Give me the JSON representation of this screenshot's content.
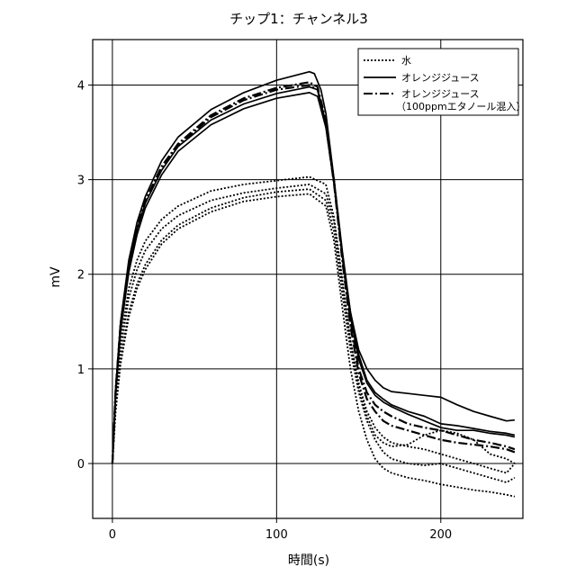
{
  "chart_data": {
    "type": "line",
    "title": "チップ1：チャンネル3",
    "xlabel": "時間(s)",
    "ylabel": "mV",
    "xlim": [
      -12,
      250
    ],
    "ylim": [
      -0.58,
      4.48
    ],
    "xticks": [
      0,
      100,
      200
    ],
    "yticks": [
      0,
      1,
      2,
      3,
      4
    ],
    "xtick_labels": [
      "0",
      "100",
      "200"
    ],
    "ytick_labels": [
      "0",
      "1",
      "2",
      "3",
      "4"
    ],
    "grid": true,
    "legend": {
      "placement": "top-right",
      "entries": [
        {
          "label": "水",
          "style": "dotted"
        },
        {
          "label": "オレンジジュース",
          "style": "solid"
        },
        {
          "label": "オレンジジュース",
          "label2": "（100ppmエタノール混入）",
          "style": "dashdot"
        }
      ]
    },
    "series": [
      {
        "style": "dotted",
        "x": [
          0,
          2,
          5,
          10,
          15,
          20,
          30,
          40,
          60,
          80,
          100,
          120,
          130,
          135,
          140,
          145,
          150,
          155,
          160,
          165,
          170,
          180,
          190,
          200,
          210,
          220,
          230,
          240,
          245
        ],
        "y": [
          0,
          0.6,
          1.1,
          1.6,
          1.9,
          2.1,
          2.36,
          2.52,
          2.7,
          2.81,
          2.87,
          2.9,
          2.78,
          2.45,
          1.8,
          1.2,
          0.75,
          0.45,
          0.25,
          0.12,
          0.05,
          0.0,
          -0.02,
          0.0,
          -0.05,
          -0.1,
          -0.15,
          -0.2,
          -0.15
        ]
      },
      {
        "style": "dotted",
        "x": [
          0,
          2,
          5,
          10,
          15,
          20,
          30,
          40,
          60,
          80,
          100,
          120,
          130,
          135,
          140,
          145,
          150,
          155,
          160,
          165,
          170,
          180,
          190,
          200,
          210,
          220,
          230,
          240,
          245
        ],
        "y": [
          0,
          0.65,
          1.2,
          1.75,
          2.05,
          2.25,
          2.48,
          2.62,
          2.78,
          2.86,
          2.91,
          2.95,
          2.85,
          2.55,
          1.9,
          1.3,
          0.85,
          0.55,
          0.38,
          0.28,
          0.22,
          0.18,
          0.15,
          0.1,
          0.05,
          0.0,
          -0.05,
          -0.1,
          0.0
        ]
      },
      {
        "style": "dotted",
        "x": [
          0,
          2,
          5,
          10,
          15,
          20,
          30,
          40,
          60,
          80,
          100,
          120,
          130,
          135,
          140,
          145,
          150,
          155,
          160,
          165,
          170,
          180,
          190,
          200,
          210,
          220,
          230,
          240,
          245
        ],
        "y": [
          0,
          0.7,
          1.3,
          1.85,
          2.15,
          2.35,
          2.58,
          2.72,
          2.88,
          2.95,
          2.99,
          3.03,
          2.95,
          2.6,
          1.95,
          1.3,
          0.8,
          0.5,
          0.3,
          0.22,
          0.18,
          0.2,
          0.3,
          0.35,
          0.32,
          0.25,
          0.1,
          0.05,
          0.0
        ]
      },
      {
        "style": "dotted",
        "x": [
          0,
          2,
          5,
          10,
          15,
          20,
          30,
          40,
          60,
          80,
          100,
          120,
          130,
          135,
          140,
          145,
          150,
          155,
          160,
          165,
          170,
          180,
          190,
          200,
          210,
          220,
          230,
          240,
          245
        ],
        "y": [
          0,
          0.55,
          1.05,
          1.55,
          1.85,
          2.05,
          2.32,
          2.48,
          2.66,
          2.77,
          2.82,
          2.85,
          2.72,
          2.35,
          1.65,
          1.0,
          0.55,
          0.25,
          0.05,
          -0.05,
          -0.1,
          -0.15,
          -0.18,
          -0.22,
          -0.25,
          -0.28,
          -0.3,
          -0.33,
          -0.35
        ]
      },
      {
        "style": "solid",
        "x": [
          0,
          2,
          5,
          10,
          15,
          20,
          30,
          40,
          60,
          80,
          100,
          120,
          123,
          127,
          130,
          135,
          140,
          145,
          150,
          155,
          160,
          165,
          170,
          180,
          190,
          200,
          210,
          220,
          230,
          240,
          245
        ],
        "y": [
          0,
          0.8,
          1.5,
          2.15,
          2.55,
          2.82,
          3.2,
          3.45,
          3.74,
          3.92,
          4.05,
          4.14,
          4.12,
          3.95,
          3.7,
          3.0,
          2.2,
          1.6,
          1.2,
          1.0,
          0.88,
          0.8,
          0.76,
          0.74,
          0.72,
          0.7,
          0.62,
          0.55,
          0.5,
          0.45,
          0.46
        ]
      },
      {
        "style": "solid",
        "x": [
          0,
          2,
          5,
          10,
          15,
          20,
          30,
          40,
          60,
          80,
          100,
          120,
          125,
          130,
          135,
          140,
          145,
          150,
          155,
          160,
          165,
          170,
          180,
          190,
          200,
          210,
          220,
          230,
          240,
          245
        ],
        "y": [
          0,
          0.75,
          1.45,
          2.08,
          2.48,
          2.75,
          3.1,
          3.35,
          3.63,
          3.8,
          3.91,
          3.98,
          3.95,
          3.6,
          3.0,
          2.25,
          1.6,
          1.15,
          0.88,
          0.75,
          0.68,
          0.62,
          0.55,
          0.5,
          0.42,
          0.4,
          0.37,
          0.34,
          0.32,
          0.3
        ]
      },
      {
        "style": "solid",
        "x": [
          0,
          2,
          5,
          10,
          15,
          20,
          30,
          40,
          60,
          80,
          100,
          120,
          125,
          130,
          135,
          140,
          145,
          150,
          155,
          160,
          165,
          170,
          180,
          190,
          200,
          210,
          220,
          230,
          240,
          245
        ],
        "y": [
          0,
          0.72,
          1.4,
          2.02,
          2.42,
          2.7,
          3.05,
          3.3,
          3.58,
          3.75,
          3.86,
          3.92,
          3.88,
          3.55,
          2.95,
          2.2,
          1.55,
          1.1,
          0.85,
          0.72,
          0.65,
          0.6,
          0.52,
          0.45,
          0.38,
          0.35,
          0.35,
          0.32,
          0.3,
          0.28
        ]
      },
      {
        "style": "dashdot",
        "x": [
          0,
          2,
          5,
          10,
          15,
          20,
          30,
          40,
          60,
          80,
          100,
          120,
          125,
          130,
          135,
          140,
          145,
          150,
          155,
          160,
          165,
          170,
          180,
          190,
          200,
          210,
          220,
          230,
          240,
          245
        ],
        "y": [
          0,
          0.78,
          1.48,
          2.1,
          2.5,
          2.78,
          3.14,
          3.38,
          3.68,
          3.86,
          3.97,
          4.03,
          3.98,
          3.62,
          2.98,
          2.2,
          1.5,
          1.0,
          0.75,
          0.62,
          0.55,
          0.5,
          0.42,
          0.38,
          0.35,
          0.3,
          0.25,
          0.22,
          0.18,
          0.15
        ]
      },
      {
        "style": "dashdot",
        "x": [
          0,
          2,
          5,
          10,
          15,
          20,
          30,
          40,
          60,
          80,
          100,
          120,
          125,
          130,
          135,
          140,
          145,
          150,
          155,
          160,
          165,
          170,
          180,
          190,
          200,
          210,
          220,
          230,
          240,
          245
        ],
        "y": [
          0,
          0.76,
          1.46,
          2.08,
          2.48,
          2.76,
          3.12,
          3.36,
          3.66,
          3.84,
          3.95,
          4.0,
          3.95,
          3.58,
          2.95,
          2.15,
          1.45,
          0.95,
          0.68,
          0.55,
          0.45,
          0.4,
          0.35,
          0.3,
          0.25,
          0.22,
          0.2,
          0.18,
          0.15,
          0.12
        ]
      }
    ]
  }
}
